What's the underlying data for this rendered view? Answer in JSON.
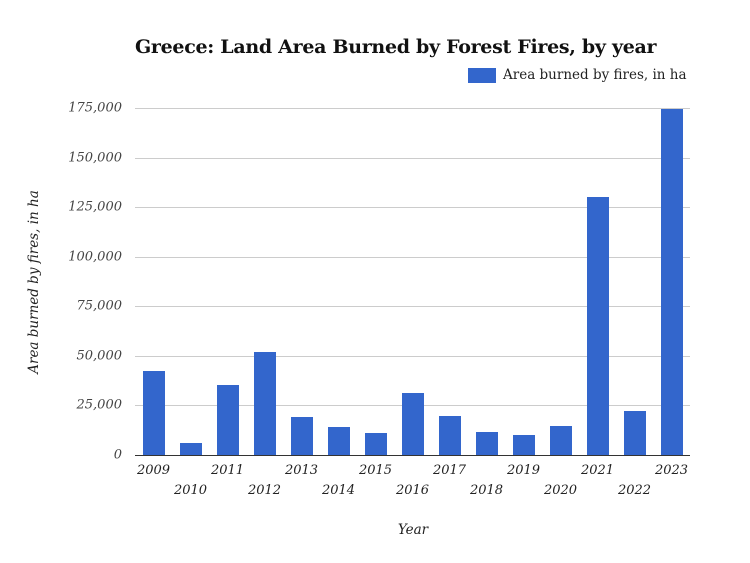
{
  "title": "Greece: Land Area Burned by Forest Fires, by year",
  "legend": {
    "label": "Area burned by fires, in ha",
    "color": "#3366cc"
  },
  "chart_data": {
    "type": "bar",
    "title": "Greece: Land Area Burned by Forest Fires, by year",
    "xlabel": "Year",
    "ylabel": "Area burned by fires, in ha",
    "categories": [
      "2009",
      "2010",
      "2011",
      "2012",
      "2013",
      "2014",
      "2015",
      "2016",
      "2017",
      "2018",
      "2019",
      "2020",
      "2021",
      "2022",
      "2023"
    ],
    "series": [
      {
        "name": "Area burned by fires, in ha",
        "color": "#3366cc",
        "values": [
          42400,
          6000,
          35300,
          52000,
          19200,
          14100,
          11100,
          31300,
          19700,
          11600,
          10100,
          14600,
          130100,
          22200,
          174700
        ]
      }
    ],
    "yticks": [
      "0",
      "25,000",
      "50,000",
      "75,000",
      "100,000",
      "125,000",
      "150,000",
      "175,000"
    ],
    "ylim": [
      0,
      175000
    ],
    "grid": true,
    "legend_position": "top-right"
  }
}
